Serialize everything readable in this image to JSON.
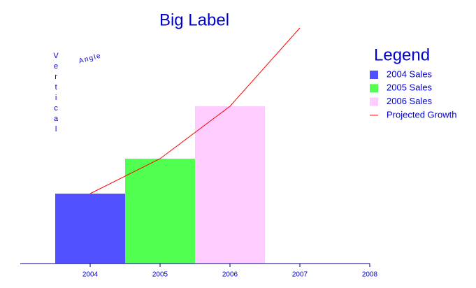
{
  "chart_data": {
    "type": "bar",
    "title": "Big Label",
    "annotations": [
      "Vertical",
      "Angle"
    ],
    "legend_title": "Legend",
    "legend": "right",
    "xlim": [
      2003,
      2008
    ],
    "xticks": [
      2004,
      2005,
      2006,
      2007,
      2008
    ],
    "ylim": [
      0,
      350
    ],
    "series": [
      {
        "name": "2004 Sales",
        "color": "#5050ff",
        "x": [
          2004
        ],
        "values": [
          100
        ]
      },
      {
        "name": "2005 Sales",
        "color": "#50ff50",
        "x": [
          2005
        ],
        "values": [
          150
        ]
      },
      {
        "name": "2006 Sales",
        "color": "#ffccff",
        "x": [
          2006
        ],
        "values": [
          225
        ]
      },
      {
        "name": "Projected Growth",
        "type": "line",
        "color": "#ff0000",
        "x": [
          2004,
          2005,
          2006,
          2007
        ],
        "values": [
          100,
          150,
          225,
          337
        ]
      }
    ]
  }
}
